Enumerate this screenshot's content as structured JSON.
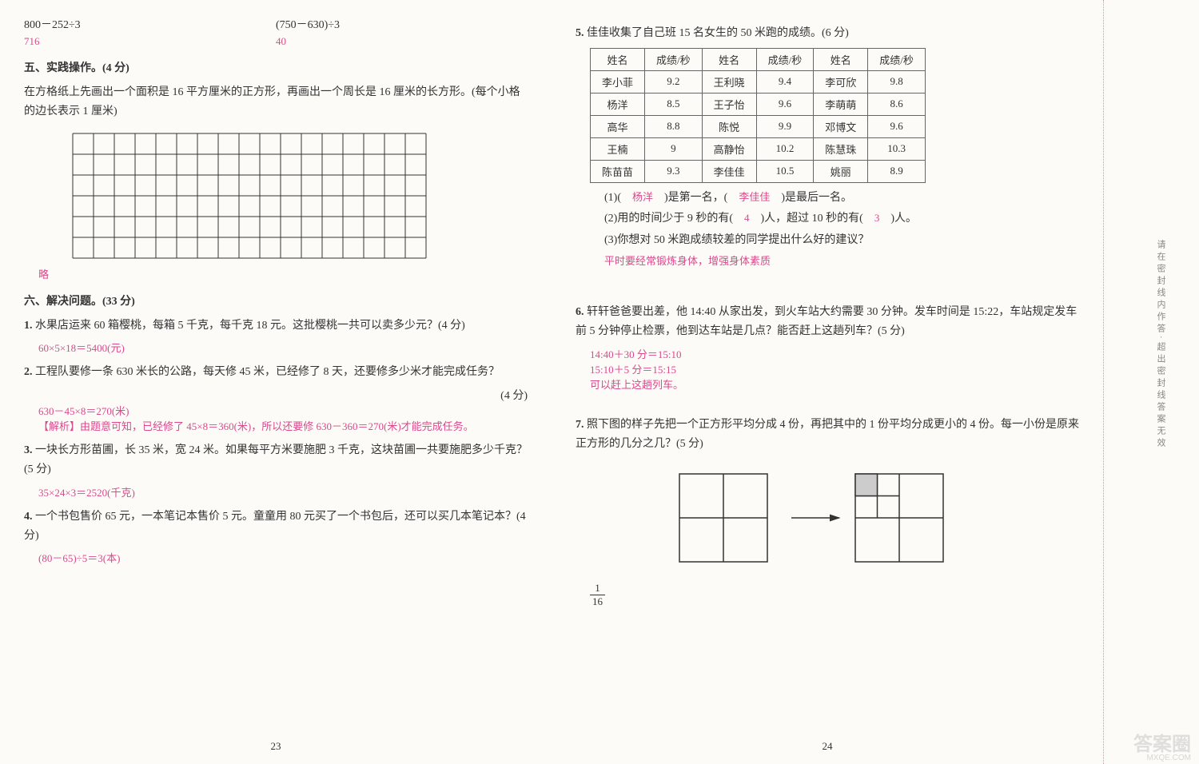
{
  "left": {
    "exprs": {
      "a": {
        "expr": "800－252÷3",
        "ans": "716"
      },
      "b": {
        "expr": "(750－630)÷3",
        "ans": "40"
      }
    },
    "sec5": {
      "title": "五、实践操作。(4 分)",
      "text": "在方格纸上先画出一个面积是 16 平方厘米的正方形，再画出一个周长是 16 厘米的长方形。(每个小格的边长表示 1 厘米)",
      "ans": "略",
      "grid": {
        "cols": 17,
        "rows": 6,
        "cell": 26
      }
    },
    "sec6": {
      "title": "六、解决问题。(33 分)",
      "q1": {
        "text": "水果店运来 60 箱樱桃，每箱 5 千克，每千克 18 元。这批樱桃一共可以卖多少元？(4 分)",
        "ans": "60×5×18＝5400(元)"
      },
      "q2": {
        "text": "工程队要修一条 630 米长的公路，每天修 45 米，已经修了 8 天，还要修多少米才能完成任务？",
        "pts": "(4 分)",
        "ans1": "630－45×8＝270(米)",
        "ans2": "【解析】由题意可知，已经修了 45×8＝360(米)，所以还要修 630－360＝270(米)才能完成任务。"
      },
      "q3": {
        "text": "一块长方形苗圃，长 35 米，宽 24 米。如果每平方米要施肥 3 千克，这块苗圃一共要施肥多少千克？(5 分)",
        "ans": "35×24×3＝2520(千克)"
      },
      "q4": {
        "text": "一个书包售价 65 元，一本笔记本售价 5 元。童童用 80 元买了一个书包后，还可以买几本笔记本？(4 分)",
        "ans": "(80－65)÷5＝3(本)"
      }
    },
    "pgnum": "23"
  },
  "right": {
    "q5": {
      "text": "佳佳收集了自己班 15 名女生的 50 米跑的成绩。(6 分)",
      "table": {
        "headers": [
          "姓名",
          "成绩/秒",
          "姓名",
          "成绩/秒",
          "姓名",
          "成绩/秒"
        ],
        "rows": [
          [
            "李小菲",
            "9.2",
            "王利晓",
            "9.4",
            "李可欣",
            "9.8"
          ],
          [
            "杨洋",
            "8.5",
            "王子怡",
            "9.6",
            "李萌萌",
            "8.6"
          ],
          [
            "高华",
            "8.8",
            "陈悦",
            "9.9",
            "邓博文",
            "9.6"
          ],
          [
            "王楠",
            "9",
            "高静怡",
            "10.2",
            "陈慧珠",
            "10.3"
          ],
          [
            "陈苗苗",
            "9.3",
            "李佳佳",
            "10.5",
            "姚丽",
            "8.9"
          ]
        ]
      },
      "s1a": "(1)(　",
      "s1b": "杨洋",
      "s1c": "　)是第一名，(　",
      "s1d": "李佳佳",
      "s1e": "　)是最后一名。",
      "s2a": "(2)用的时间少于 9 秒的有(　",
      "s2b": "4",
      "s2c": "　)人，超过 10 秒的有(　",
      "s2d": "3",
      "s2e": "　)人。",
      "s3": "(3)你想对 50 米跑成绩较差的同学提出什么好的建议？",
      "s3ans": "平时要经常锻炼身体，增强身体素质"
    },
    "q6": {
      "text": "轩轩爸爸要出差，他 14:40 从家出发，到火车站大约需要 30 分钟。发车时间是 15:22，车站规定发车前 5 分钟停止检票，他到达车站是几点？能否赶上这趟列车？(5 分)",
      "a1": "14:40＋30 分＝15:10",
      "a2": "15:10＋5 分＝15:15",
      "a3": "可以赶上这趟列车。"
    },
    "q7": {
      "text": "照下图的样子先把一个正方形平均分成 4 份，再把其中的 1 份平均分成更小的 4 份。每一小份是原来正方形的几分之几？(5 分)",
      "frac_n": "1",
      "frac_d": "16"
    },
    "pgnum": "24"
  },
  "side": "请在密封线内作答·超出密封线答案无效",
  "wm": "答案圈",
  "wm2": "MXQE.COM"
}
